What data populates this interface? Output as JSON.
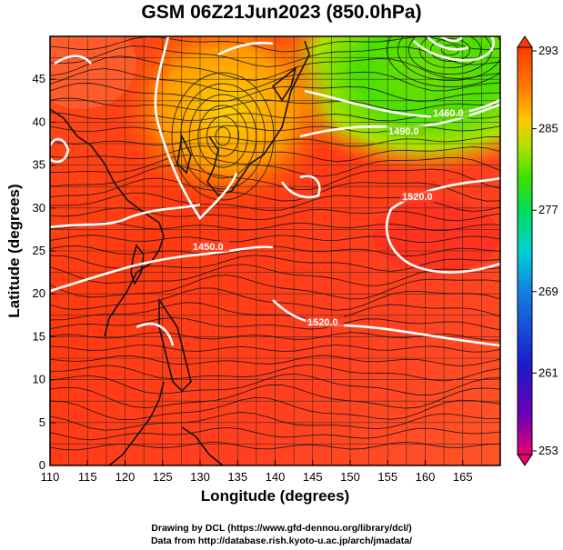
{
  "title": "GSM 06Z21Jun2023 (850.0hPa)",
  "x_axis": {
    "label": "Longitude (degrees)",
    "range": [
      110,
      170
    ],
    "ticks": [
      "110",
      "115",
      "120",
      "125",
      "130",
      "135",
      "140",
      "145",
      "150",
      "155",
      "160",
      "165"
    ]
  },
  "y_axis": {
    "label": "Latitude  (degrees)",
    "range": [
      0,
      50
    ],
    "ticks": [
      "0",
      "5",
      "10",
      "15",
      "20",
      "25",
      "30",
      "35",
      "40",
      "45"
    ]
  },
  "colorbar": {
    "labels": [
      "293",
      "285",
      "277",
      "269",
      "261",
      "253"
    ],
    "range": [
      253,
      293
    ],
    "colors": [
      "#e8006f",
      "#6a00b8",
      "#1a1acd",
      "#1480e0",
      "#00d2d2",
      "#00dc5a",
      "#3ee000",
      "#b5e000",
      "#ffc800",
      "#ff7a00",
      "#ff3a00"
    ]
  },
  "contour_labels": [
    "1450.0",
    "1520.0",
    "1460.0",
    "1490.0",
    "1520.0"
  ],
  "credits": {
    "line1": "Drawing by DCL (https://www.gfd-dennou.org/library/dcl/)",
    "line2": "Data from http://database.rish.kyoto-u.ac.jp/arch/jmadata/"
  }
}
